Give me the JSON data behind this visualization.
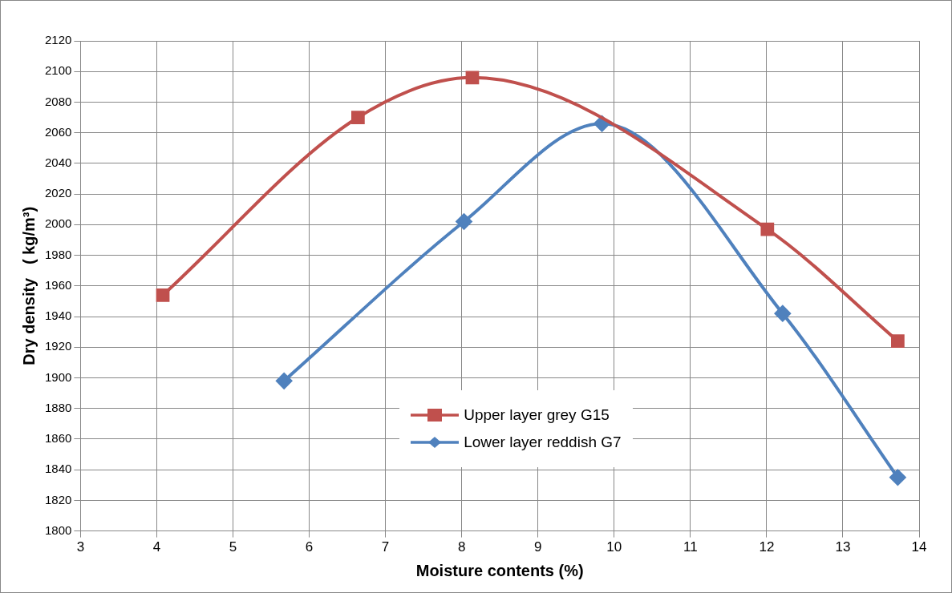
{
  "chart_data": {
    "type": "line",
    "xlabel": "Moisture contents (%)",
    "ylabel": "Dry density   ( kg/m³)",
    "xlim": [
      3,
      14
    ],
    "xticks": [
      3,
      4,
      5,
      6,
      7,
      8,
      9,
      10,
      11,
      12,
      13,
      14
    ],
    "ylim": [
      1800,
      2120
    ],
    "yticks": [
      1800,
      1820,
      1840,
      1860,
      1880,
      1900,
      1920,
      1940,
      1960,
      1980,
      2000,
      2020,
      2040,
      2060,
      2080,
      2100,
      2120
    ],
    "grid": true,
    "legend": "bottom",
    "series": [
      {
        "name": "Upper layer grey G15",
        "color": "#c0504d",
        "marker": "square",
        "x": [
          4.08,
          6.64,
          8.14,
          12.01,
          13.72
        ],
        "values": [
          1954,
          2070,
          2096,
          1997,
          1924
        ]
      },
      {
        "name": "Lower layer reddish G7",
        "color": "#4f81bd",
        "marker": "diamond",
        "x": [
          5.67,
          8.03,
          9.84,
          12.21,
          13.72
        ],
        "values": [
          1898,
          2002,
          2066,
          1942,
          1835
        ]
      }
    ]
  }
}
